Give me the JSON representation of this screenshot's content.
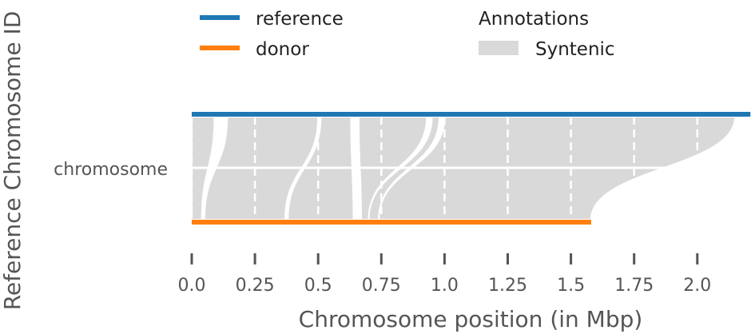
{
  "chart_data": {
    "type": "synteny",
    "xlabel": "Chromosome position (in Mbp)",
    "ylabel": "Reference Chromosome ID",
    "x_ticks": [
      0.0,
      0.25,
      0.5,
      0.75,
      1.0,
      1.25,
      1.5,
      1.75,
      2.0
    ],
    "x_tick_labels": [
      "0.0",
      "0.25",
      "0.5",
      "0.75",
      "1.0",
      "1.25",
      "1.5",
      "1.75",
      "2.0"
    ],
    "xlim": [
      0.0,
      2.21
    ],
    "chromosome_label": "chromosome",
    "tracks": [
      {
        "name": "reference",
        "start": 0.0,
        "end": 2.21,
        "color": "#1f77b4"
      },
      {
        "name": "donor",
        "start": 0.0,
        "end": 1.58,
        "color": "#ff7f0e"
      }
    ],
    "legend": {
      "tracks_title": "",
      "annotations_title": "Annotations",
      "annotation_items": [
        {
          "name": "Syntenic",
          "color": "#d9d9d9"
        }
      ]
    },
    "syntenic_blocks": [
      {
        "ref_start": 0.0,
        "ref_end": 0.09,
        "donor_start": 0.0,
        "donor_end": 0.04
      },
      {
        "ref_start": 0.14,
        "ref_end": 0.5,
        "donor_start": 0.05,
        "donor_end": 0.37
      },
      {
        "ref_start": 0.51,
        "ref_end": 0.63,
        "donor_start": 0.38,
        "donor_end": 0.64
      },
      {
        "ref_start": 0.66,
        "ref_end": 0.93,
        "donor_start": 0.67,
        "donor_end": 0.7
      },
      {
        "ref_start": 0.95,
        "ref_end": 0.98,
        "donor_start": 0.7,
        "donor_end": 0.74
      },
      {
        "ref_start": 1.0,
        "ref_end": 2.15,
        "donor_start": 0.74,
        "donor_end": 1.58
      }
    ],
    "grid": "vertical dashed white"
  }
}
